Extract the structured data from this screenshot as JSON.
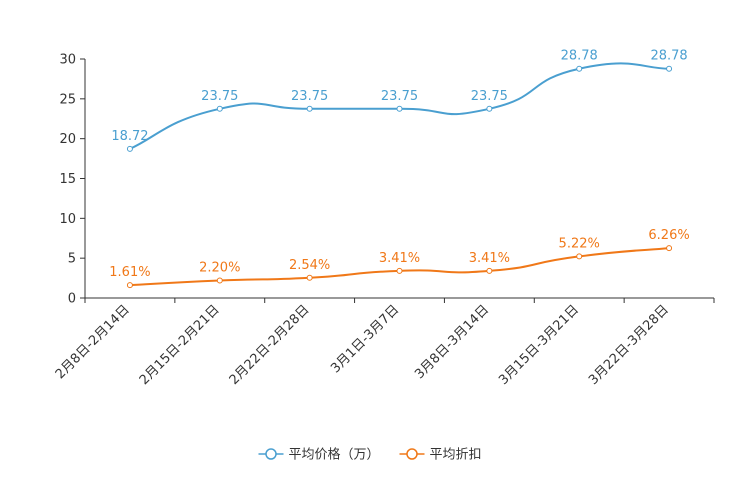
{
  "chart_data": {
    "type": "line",
    "categories": [
      "2月8日-2月14日",
      "2月15日-2月21日",
      "2月22日-2月28日",
      "3月1日-3月7日",
      "3月8日-3月14日",
      "3月15日-3月21日",
      "3月22日-3月28日"
    ],
    "ylim": [
      0,
      30
    ],
    "yticks": [
      0,
      5,
      10,
      15,
      20,
      25,
      30
    ],
    "series": [
      {
        "name": "平均价格（万）",
        "color": "#4a9fd0",
        "values": [
          18.72,
          23.75,
          23.75,
          23.75,
          23.75,
          28.78,
          28.78
        ],
        "labels": [
          "18.72",
          "23.75",
          "23.75",
          "23.75",
          "23.75",
          "28.78",
          "28.78"
        ]
      },
      {
        "name": "平均折扣",
        "color": "#f07818",
        "values": [
          1.61,
          2.2,
          2.54,
          3.41,
          3.41,
          5.22,
          6.26
        ],
        "labels": [
          "1.61%",
          "2.20%",
          "2.54%",
          "3.41%",
          "3.41%",
          "5.22%",
          "6.26%"
        ]
      }
    ],
    "legend_position": "bottom-center",
    "grid": false
  }
}
